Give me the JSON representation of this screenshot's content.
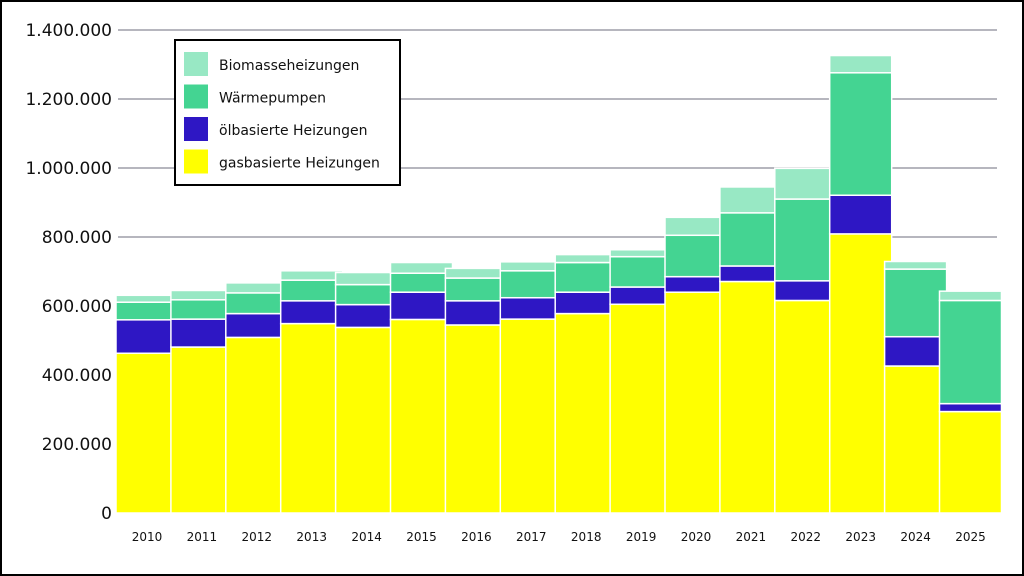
{
  "chart_data": {
    "type": "bar",
    "stacked": true,
    "title": "",
    "xlabel": "",
    "ylabel": "",
    "ylim": [
      0,
      1400000
    ],
    "yticks": [
      0,
      200000,
      400000,
      600000,
      800000,
      1000000,
      1200000,
      1400000
    ],
    "ytick_labels": [
      "0",
      "200.000",
      "400.000",
      "600.000",
      "800.000",
      "1.000.000",
      "1.200.000",
      "1.400.000"
    ],
    "grid": true,
    "legend_position": "top-left",
    "categories": [
      "2010",
      "2011",
      "2012",
      "2013",
      "2014",
      "2015",
      "2016",
      "2017",
      "2018",
      "2019",
      "2020",
      "2021",
      "2022",
      "2023",
      "2024",
      "2025"
    ],
    "series": [
      {
        "name": "gasbasierte Heizungen",
        "color": "#ffff00",
        "values": [
          463000,
          481000,
          509000,
          549000,
          538000,
          561000,
          545000,
          562000,
          578000,
          605000,
          640000,
          671000,
          616000,
          809000,
          426000,
          294000
        ]
      },
      {
        "name": "ölbasierte Heizungen",
        "color": "#2e17c4",
        "values": [
          97000,
          81000,
          69000,
          66000,
          66000,
          79000,
          70000,
          62000,
          62000,
          50000,
          45000,
          45000,
          57000,
          112000,
          85000,
          23000
        ]
      },
      {
        "name": "Wärmepumpen",
        "color": "#44d492",
        "values": [
          51000,
          56000,
          60000,
          60000,
          58000,
          55000,
          66000,
          78000,
          86000,
          88000,
          120000,
          154000,
          237000,
          355000,
          196000,
          299000
        ]
      },
      {
        "name": "Biomasseheizungen",
        "color": "#98e8c4",
        "values": [
          20000,
          27000,
          29000,
          27000,
          35000,
          31000,
          28000,
          26000,
          23000,
          20000,
          52000,
          75000,
          89000,
          50000,
          22000,
          27000
        ]
      }
    ],
    "legend_order": [
      "Biomasseheizungen",
      "Wärmepumpen",
      "ölbasierte Heizungen",
      "gasbasierte Heizungen"
    ]
  }
}
